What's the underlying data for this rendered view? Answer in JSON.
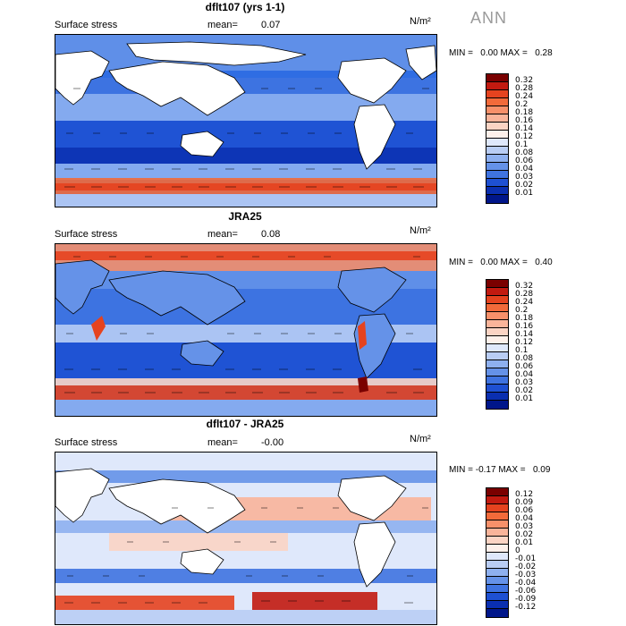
{
  "season": "ANN",
  "units": "N/m²",
  "panels": [
    {
      "title": "dflt107 (yrs 1-1)",
      "subtitle": "Surface stress",
      "mean_label": "mean=",
      "mean_value": "0.07",
      "min_label": "MIN =",
      "min_value": "0.00",
      "max_label": "MAX =",
      "max_value": "0.28",
      "colorbar": [
        "0.32",
        "0.28",
        "0.24",
        "0.2",
        "0.18",
        "0.16",
        "0.14",
        "0.12",
        "0.1",
        "0.08",
        "0.06",
        "0.04",
        "0.03",
        "0.02",
        "0.01"
      ],
      "colors": [
        "#7a0000",
        "#c21a10",
        "#e5431f",
        "#f26a3a",
        "#f7906a",
        "#f9b49a",
        "#fbd4c4",
        "#fdf0ea",
        "#dfe8fb",
        "#b9cdf4",
        "#8eb0ef",
        "#6592e8",
        "#3f73e0",
        "#1e50d2",
        "#0a2fb0",
        "#00168a"
      ]
    },
    {
      "title": "JRA25",
      "subtitle": "Surface stress",
      "mean_label": "mean=",
      "mean_value": "0.08",
      "min_label": "MIN =",
      "min_value": "0.00",
      "max_label": "MAX =",
      "max_value": "0.40",
      "colorbar": [
        "0.32",
        "0.28",
        "0.24",
        "0.2",
        "0.18",
        "0.16",
        "0.14",
        "0.12",
        "0.1",
        "0.08",
        "0.06",
        "0.04",
        "0.03",
        "0.02",
        "0.01"
      ],
      "colors": [
        "#7a0000",
        "#c21a10",
        "#e5431f",
        "#f26a3a",
        "#f7906a",
        "#f9b49a",
        "#fbd4c4",
        "#fdf0ea",
        "#dfe8fb",
        "#b9cdf4",
        "#8eb0ef",
        "#6592e8",
        "#3f73e0",
        "#1e50d2",
        "#0a2fb0",
        "#00168a"
      ]
    },
    {
      "title": "dflt107 - JRA25",
      "subtitle": "Surface stress",
      "mean_label": "mean=",
      "mean_value": "-0.00",
      "min_label": "MIN =",
      "min_value": "-0.17",
      "max_label": "MAX =",
      "max_value": "0.09",
      "colorbar": [
        "0.12",
        "0.09",
        "0.06",
        "0.04",
        "0.03",
        "0.02",
        "0.01",
        "0",
        "-0.01",
        "-0.02",
        "-0.03",
        "-0.04",
        "-0.06",
        "-0.09",
        "-0.12"
      ],
      "colors": [
        "#7a0000",
        "#c21a10",
        "#e5431f",
        "#f26a3a",
        "#f7906a",
        "#f9b49a",
        "#fbd4c4",
        "#fdf0ea",
        "#dfe8fb",
        "#b9cdf4",
        "#8eb0ef",
        "#6592e8",
        "#3f73e0",
        "#1e50d2",
        "#0a2fb0",
        "#00168a"
      ]
    }
  ]
}
